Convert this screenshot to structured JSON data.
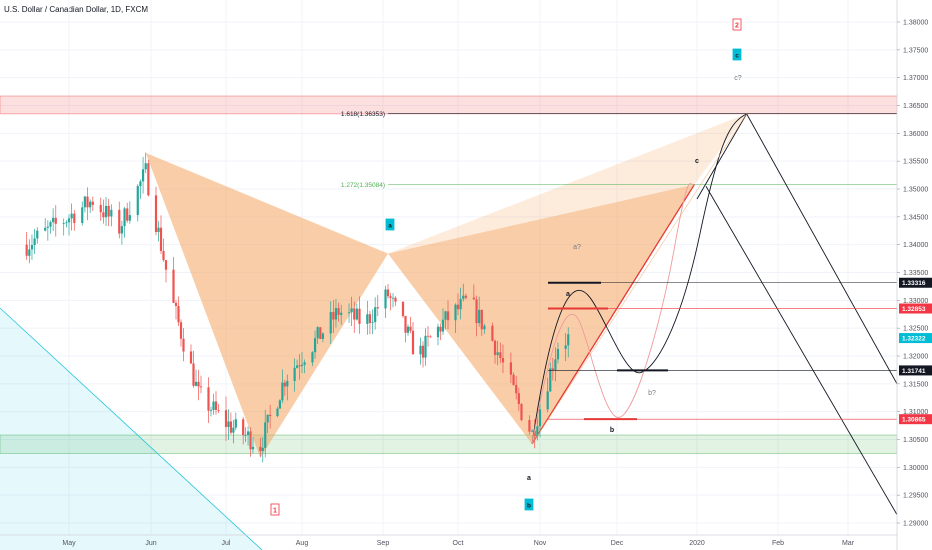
{
  "header": {
    "title": "U.S. Dollar / Canadian Dollar, 1D, FXCM"
  },
  "colors": {
    "bull": "#26a69a",
    "bear": "#ef5350",
    "pattern": "#f4a460",
    "wave_box": "#00bcd4",
    "alert_box": "#f23645",
    "tag_black": "#131722",
    "tag_red": "#f23645",
    "tag_teal": "#00bcd4"
  },
  "chart_data": {
    "type": "candlestick",
    "title": "U.S. Dollar / Canadian Dollar, 1D, FXCM",
    "ylim": [
      1.2875,
      1.385
    ],
    "x_ticks": [
      "May",
      "Jun",
      "Jul",
      "Aug",
      "Sep",
      "Oct",
      "Nov",
      "Dec",
      "2020",
      "Feb",
      "Mar"
    ],
    "y_ticks": [
      "1.29000",
      "1.29500",
      "1.30000",
      "1.30500",
      "1.31000",
      "1.31500",
      "1.32000",
      "1.32500",
      "1.33000",
      "1.33500",
      "1.34000",
      "1.34500",
      "1.35000",
      "1.35500",
      "1.36000",
      "1.36500",
      "1.37000",
      "1.37500",
      "1.38000"
    ],
    "price_tags": [
      {
        "label": "1.33316",
        "value": 1.33316,
        "style": "black"
      },
      {
        "label": "1.32853",
        "value": 1.32853,
        "style": "red"
      },
      {
        "label": "1.32322",
        "value": 1.32322,
        "style": "teal"
      },
      {
        "label": "1.31741",
        "value": 1.31741,
        "style": "black"
      },
      {
        "label": "1.30865",
        "value": 1.30865,
        "style": "red"
      }
    ],
    "fib_levels": [
      {
        "label": "1.618(1.36353)",
        "value": 1.36353
      },
      {
        "label": "1.272(1.35084)",
        "value": 1.35084
      }
    ],
    "zones": [
      {
        "name": "resistance",
        "from": 1.3635,
        "to": 1.3667
      },
      {
        "name": "support",
        "from": 1.3025,
        "to": 1.3058
      }
    ],
    "pattern_points": {
      "X": {
        "date": "2019-05-30",
        "value": 1.3565
      },
      "A": {
        "date": "2019-07-15",
        "value": 1.3017
      },
      "B": {
        "date": "2019-09-03",
        "value": 1.3384
      },
      "C": {
        "date": "2019-10-29",
        "value": 1.3042
      },
      "D": {
        "date": "2019-12-31",
        "value": 1.3508
      },
      "D2": {
        "date": "2020-01-20",
        "value": 1.3635
      }
    },
    "wave_labels": [
      "1",
      "a",
      "2",
      "c",
      "c?",
      "a?",
      "a",
      "b",
      "b?",
      "c",
      "a",
      "b"
    ],
    "candles": []
  }
}
